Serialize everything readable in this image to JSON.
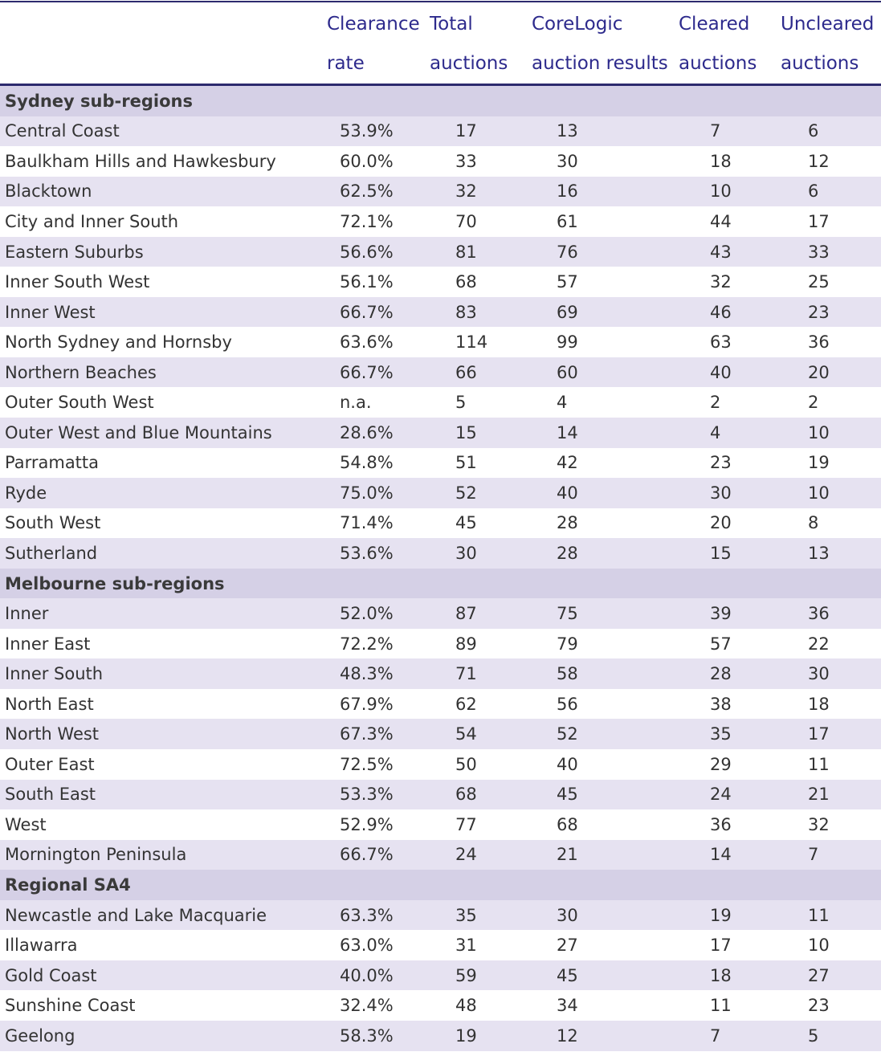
{
  "headers": {
    "clearance_rate": [
      "Clearance",
      "rate"
    ],
    "total_auctions": [
      "Total",
      "auctions"
    ],
    "corelogic_results": [
      "CoreLogic",
      "auction results"
    ],
    "cleared_auctions": [
      "Cleared",
      "auctions"
    ],
    "uncleared_auctions": [
      "Uncleared",
      "auctions"
    ]
  },
  "sections": [
    {
      "title": "Sydney sub-regions",
      "rows": [
        {
          "name": "Central Coast",
          "rate": "53.9%",
          "total": "17",
          "results": "13",
          "cleared": "7",
          "uncleared": "6"
        },
        {
          "name": "Baulkham Hills and Hawkesbury",
          "rate": "60.0%",
          "total": "33",
          "results": "30",
          "cleared": "18",
          "uncleared": "12"
        },
        {
          "name": "Blacktown",
          "rate": "62.5%",
          "total": "32",
          "results": "16",
          "cleared": "10",
          "uncleared": "6"
        },
        {
          "name": "City and Inner South",
          "rate": "72.1%",
          "total": "70",
          "results": "61",
          "cleared": "44",
          "uncleared": "17"
        },
        {
          "name": "Eastern Suburbs",
          "rate": "56.6%",
          "total": "81",
          "results": "76",
          "cleared": "43",
          "uncleared": "33"
        },
        {
          "name": "Inner South West",
          "rate": "56.1%",
          "total": "68",
          "results": "57",
          "cleared": "32",
          "uncleared": "25"
        },
        {
          "name": "Inner West",
          "rate": "66.7%",
          "total": "83",
          "results": "69",
          "cleared": "46",
          "uncleared": "23"
        },
        {
          "name": "North Sydney and Hornsby",
          "rate": "63.6%",
          "total": "114",
          "results": "99",
          "cleared": "63",
          "uncleared": "36"
        },
        {
          "name": "Northern Beaches",
          "rate": "66.7%",
          "total": "66",
          "results": "60",
          "cleared": "40",
          "uncleared": "20"
        },
        {
          "name": "Outer South West",
          "rate": "n.a.",
          "total": "5",
          "results": "4",
          "cleared": "2",
          "uncleared": "2"
        },
        {
          "name": "Outer West and Blue Mountains",
          "rate": "28.6%",
          "total": "15",
          "results": "14",
          "cleared": "4",
          "uncleared": "10"
        },
        {
          "name": "Parramatta",
          "rate": "54.8%",
          "total": "51",
          "results": "42",
          "cleared": "23",
          "uncleared": "19"
        },
        {
          "name": "Ryde",
          "rate": "75.0%",
          "total": "52",
          "results": "40",
          "cleared": "30",
          "uncleared": "10"
        },
        {
          "name": "South West",
          "rate": "71.4%",
          "total": "45",
          "results": "28",
          "cleared": "20",
          "uncleared": "8"
        },
        {
          "name": "Sutherland",
          "rate": "53.6%",
          "total": "30",
          "results": "28",
          "cleared": "15",
          "uncleared": "13"
        }
      ]
    },
    {
      "title": "Melbourne sub-regions",
      "rows": [
        {
          "name": "Inner",
          "rate": "52.0%",
          "total": "87",
          "results": "75",
          "cleared": "39",
          "uncleared": "36"
        },
        {
          "name": "Inner East",
          "rate": "72.2%",
          "total": "89",
          "results": "79",
          "cleared": "57",
          "uncleared": "22"
        },
        {
          "name": "Inner South",
          "rate": "48.3%",
          "total": "71",
          "results": "58",
          "cleared": "28",
          "uncleared": "30"
        },
        {
          "name": "North East",
          "rate": "67.9%",
          "total": "62",
          "results": "56",
          "cleared": "38",
          "uncleared": "18"
        },
        {
          "name": "North West",
          "rate": "67.3%",
          "total": "54",
          "results": "52",
          "cleared": "35",
          "uncleared": "17"
        },
        {
          "name": "Outer East",
          "rate": "72.5%",
          "total": "50",
          "results": "40",
          "cleared": "29",
          "uncleared": "11"
        },
        {
          "name": "South East",
          "rate": "53.3%",
          "total": "68",
          "results": "45",
          "cleared": "24",
          "uncleared": "21"
        },
        {
          "name": "West",
          "rate": "52.9%",
          "total": "77",
          "results": "68",
          "cleared": "36",
          "uncleared": "32"
        },
        {
          "name": "Mornington Peninsula",
          "rate": "66.7%",
          "total": "24",
          "results": "21",
          "cleared": "14",
          "uncleared": "7"
        }
      ]
    },
    {
      "title": "Regional SA4",
      "rows": [
        {
          "name": "Newcastle and Lake Macquarie",
          "rate": "63.3%",
          "total": "35",
          "results": "30",
          "cleared": "19",
          "uncleared": "11"
        },
        {
          "name": "Illawarra",
          "rate": "63.0%",
          "total": "31",
          "results": "27",
          "cleared": "17",
          "uncleared": "10"
        },
        {
          "name": "Gold Coast",
          "rate": "40.0%",
          "total": "59",
          "results": "45",
          "cleared": "18",
          "uncleared": "27"
        },
        {
          "name": "Sunshine Coast",
          "rate": "32.4%",
          "total": "48",
          "results": "34",
          "cleared": "11",
          "uncleared": "23"
        },
        {
          "name": "Geelong",
          "rate": "58.3%",
          "total": "19",
          "results": "12",
          "cleared": "7",
          "uncleared": "5"
        }
      ]
    }
  ]
}
